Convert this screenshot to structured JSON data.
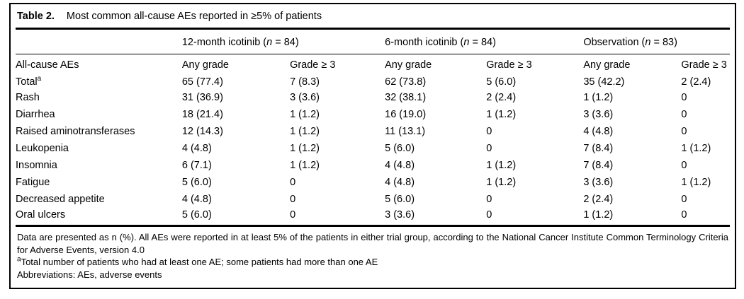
{
  "table": {
    "label": "Table 2.",
    "title": "Most common all-cause AEs reported in ≥5% of patients",
    "groups": [
      {
        "name": "12-month icotinib",
        "n_label": "n",
        "n_value": "84"
      },
      {
        "name": "6-month icotinib",
        "n_label": "n",
        "n_value": "84"
      },
      {
        "name": "Observation",
        "n_label": "n",
        "n_value": "83"
      }
    ],
    "row_header": "All-cause AEs",
    "subheaders": [
      "Any grade",
      "Grade ≥ 3"
    ],
    "rows": [
      {
        "label": "Total",
        "sup": "a",
        "values": [
          "65 (77.4)",
          "7 (8.3)",
          "62 (73.8)",
          "5 (6.0)",
          "35 (42.2)",
          "2 (2.4)"
        ]
      },
      {
        "label": "Rash",
        "sup": "",
        "values": [
          "31 (36.9)",
          "3 (3.6)",
          "32 (38.1)",
          "2 (2.4)",
          "1 (1.2)",
          "0"
        ]
      },
      {
        "label": "Diarrhea",
        "sup": "",
        "values": [
          "18 (21.4)",
          "1 (1.2)",
          "16 (19.0)",
          "1 (1.2)",
          "3 (3.6)",
          "0"
        ]
      },
      {
        "label": "Raised aminotransferases",
        "sup": "",
        "values": [
          "12 (14.3)",
          "1 (1.2)",
          "11 (13.1)",
          "0",
          "4 (4.8)",
          "0"
        ]
      },
      {
        "label": "Leukopenia",
        "sup": "",
        "values": [
          "4 (4.8)",
          "1 (1.2)",
          "5 (6.0)",
          "0",
          "7 (8.4)",
          "1 (1.2)"
        ]
      },
      {
        "label": "Insomnia",
        "sup": "",
        "values": [
          "6 (7.1)",
          "1 (1.2)",
          "4 (4.8)",
          "1 (1.2)",
          "7 (8.4)",
          "0"
        ]
      },
      {
        "label": "Fatigue",
        "sup": "",
        "values": [
          "5 (6.0)",
          "0",
          "4 (4.8)",
          "1 (1.2)",
          "3 (3.6)",
          "1 (1.2)"
        ]
      },
      {
        "label": "Decreased appetite",
        "sup": "",
        "values": [
          "4 (4.8)",
          "0",
          "5 (6.0)",
          "0",
          "2 (2.4)",
          "0"
        ]
      },
      {
        "label": "Oral ulcers",
        "sup": "",
        "values": [
          "5 (6.0)",
          "0",
          "3 (3.6)",
          "0",
          "1 (1.2)",
          "0"
        ]
      }
    ],
    "footnotes": [
      {
        "sup": "",
        "text": "Data are presented as n (%). All AEs were reported in at least 5% of the patients in either trial group, according to the National Cancer Institute Common Terminology Criteria for Adverse Events, version 4.0"
      },
      {
        "sup": "a",
        "text": "Total number of patients who had at least one AE; some patients had more than one AE"
      },
      {
        "sup": "",
        "text": "Abbreviations: AEs, adverse events"
      }
    ]
  }
}
